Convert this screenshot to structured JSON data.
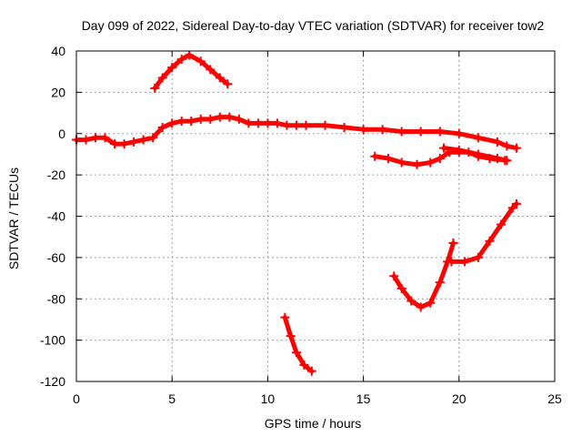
{
  "chart_data": {
    "type": "scatter",
    "title": "Day 099 of 2022, Sidereal Day-to-day VTEC variation (SDTVAR) for receiver tow2",
    "xlabel": "GPS time / hours",
    "ylabel": "SDTVAR / TECUs",
    "xlim": [
      0,
      25
    ],
    "ylim": [
      -120,
      40
    ],
    "xticks": [
      0,
      5,
      10,
      15,
      20,
      25
    ],
    "yticks": [
      -120,
      -100,
      -80,
      -60,
      -40,
      -20,
      0,
      20,
      40
    ],
    "xtick_labels": [
      "0",
      "5",
      "10",
      "15",
      "20",
      "25"
    ],
    "ytick_labels": [
      "-120",
      "-100",
      "-80",
      "-60",
      "-40",
      "-20",
      "0",
      "20",
      "40"
    ],
    "grid": true,
    "color": "#ff0000",
    "series": [
      {
        "name": "s1",
        "points": [
          [
            0,
            -3
          ],
          [
            0.5,
            -3
          ],
          [
            1,
            -2
          ],
          [
            1.5,
            -2
          ],
          [
            2,
            -5
          ],
          [
            2.5,
            -5
          ],
          [
            3,
            -4
          ],
          [
            3.5,
            -3
          ],
          [
            4,
            -2
          ],
          [
            4.5,
            3
          ],
          [
            5,
            5
          ],
          [
            5.5,
            6
          ],
          [
            6,
            6
          ],
          [
            6.5,
            7
          ],
          [
            7,
            7
          ],
          [
            7.5,
            8
          ],
          [
            8,
            8
          ],
          [
            8.5,
            7
          ],
          [
            9,
            5
          ],
          [
            9.5,
            5
          ],
          [
            10,
            5
          ],
          [
            10.5,
            5
          ],
          [
            11,
            4
          ],
          [
            11.5,
            4
          ],
          [
            12,
            4
          ],
          [
            13,
            4
          ],
          [
            14,
            3
          ],
          [
            15,
            2
          ],
          [
            16,
            2
          ],
          [
            17,
            1
          ],
          [
            18,
            1
          ],
          [
            19,
            1
          ],
          [
            20,
            0
          ],
          [
            21,
            -2
          ],
          [
            22,
            -4
          ],
          [
            22.5,
            -6
          ],
          [
            23,
            -7
          ]
        ]
      },
      {
        "name": "s2",
        "points": [
          [
            4.1,
            22
          ],
          [
            4.5,
            27
          ],
          [
            5,
            32
          ],
          [
            5.5,
            36
          ],
          [
            5.9,
            38
          ],
          [
            6.5,
            35
          ],
          [
            7,
            31
          ],
          [
            7.5,
            27
          ],
          [
            7.9,
            24
          ]
        ]
      },
      {
        "name": "s3",
        "points": [
          [
            15.6,
            -11
          ],
          [
            16.3,
            -12
          ],
          [
            17,
            -14
          ],
          [
            17.8,
            -15
          ],
          [
            18.5,
            -14
          ],
          [
            19,
            -12
          ],
          [
            19.5,
            -9
          ],
          [
            20,
            -9
          ],
          [
            20.5,
            -9
          ],
          [
            21,
            -11
          ],
          [
            21.6,
            -12
          ],
          [
            22.4,
            -13
          ]
        ]
      },
      {
        "name": "s4",
        "points": [
          [
            19.2,
            -7
          ],
          [
            20,
            -8
          ],
          [
            21,
            -10
          ],
          [
            22,
            -12
          ],
          [
            22.5,
            -13
          ]
        ]
      },
      {
        "name": "s5",
        "points": [
          [
            10.9,
            -89
          ],
          [
            11.2,
            -98
          ],
          [
            11.5,
            -106
          ],
          [
            11.9,
            -112
          ],
          [
            12.3,
            -115
          ]
        ]
      },
      {
        "name": "s6",
        "points": [
          [
            16.6,
            -69
          ],
          [
            17,
            -75
          ],
          [
            17.5,
            -81
          ],
          [
            18,
            -84
          ],
          [
            18.5,
            -82
          ],
          [
            19,
            -72
          ],
          [
            19.4,
            -62
          ],
          [
            19.7,
            -53
          ]
        ]
      },
      {
        "name": "s7",
        "points": [
          [
            19.6,
            -62
          ],
          [
            20.3,
            -62
          ],
          [
            21,
            -60
          ],
          [
            21.6,
            -52
          ],
          [
            22.2,
            -44
          ],
          [
            22.8,
            -36
          ],
          [
            23,
            -34
          ]
        ]
      }
    ]
  }
}
